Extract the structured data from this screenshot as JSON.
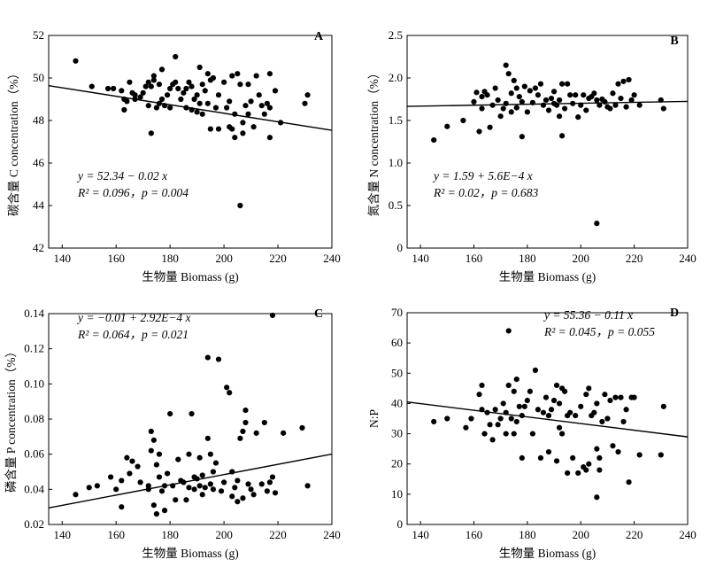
{
  "figure": {
    "background": "#ffffff",
    "ink": "#000000"
  },
  "chart_data": [
    {
      "type": "scatter",
      "panel_label": "A",
      "xlabel": "生物量 Biomass (g)",
      "ylabel": "碳含量 C concentration（%）",
      "xlim": [
        135,
        240
      ],
      "ylim": [
        42,
        52
      ],
      "xticks": [
        140,
        160,
        180,
        200,
        220,
        240
      ],
      "yticks": [
        42,
        44,
        46,
        48,
        50,
        52
      ],
      "equation_lines": [
        "y = 52.34 − 0.02 x",
        "R² = 0.096，p = 0.004"
      ],
      "fit": {
        "intercept": 52.34,
        "slope": -0.02
      },
      "points": [
        [
          145,
          50.8
        ],
        [
          151,
          49.6
        ],
        [
          157,
          49.5
        ],
        [
          159,
          49.5
        ],
        [
          162,
          49.4
        ],
        [
          163,
          48.5
        ],
        [
          163,
          49.0
        ],
        [
          164,
          48.9
        ],
        [
          165,
          49.8
        ],
        [
          166,
          49.3
        ],
        [
          167,
          49.2
        ],
        [
          167,
          49.0
        ],
        [
          169,
          49.1
        ],
        [
          170,
          49.3
        ],
        [
          171,
          49.6
        ],
        [
          172,
          49.8
        ],
        [
          172,
          48.7
        ],
        [
          173,
          47.4
        ],
        [
          173,
          49.6
        ],
        [
          174,
          50.1
        ],
        [
          174,
          49.9
        ],
        [
          175,
          48.6
        ],
        [
          176,
          48.8
        ],
        [
          176,
          49.7
        ],
        [
          177,
          50.4
        ],
        [
          177,
          49.0
        ],
        [
          178,
          48.7
        ],
        [
          179,
          49.2
        ],
        [
          180,
          49.5
        ],
        [
          180,
          48.6
        ],
        [
          181,
          49.7
        ],
        [
          182,
          51.0
        ],
        [
          182,
          49.8
        ],
        [
          183,
          49.5
        ],
        [
          184,
          49.0
        ],
        [
          185,
          49.3
        ],
        [
          186,
          48.6
        ],
        [
          186,
          49.5
        ],
        [
          187,
          49.8
        ],
        [
          188,
          49.6
        ],
        [
          188,
          48.5
        ],
        [
          189,
          49.0
        ],
        [
          190,
          48.4
        ],
        [
          190,
          49.2
        ],
        [
          191,
          50.5
        ],
        [
          191,
          48.8
        ],
        [
          192,
          48.3
        ],
        [
          192,
          49.7
        ],
        [
          193,
          49.4
        ],
        [
          194,
          50.2
        ],
        [
          194,
          48.8
        ],
        [
          195,
          49.9
        ],
        [
          195,
          47.6
        ],
        [
          196,
          50.0
        ],
        [
          197,
          48.6
        ],
        [
          198,
          49.2
        ],
        [
          198,
          47.6
        ],
        [
          200,
          49.8
        ],
        [
          201,
          48.6
        ],
        [
          202,
          48.9
        ],
        [
          202,
          47.7
        ],
        [
          203,
          50.1
        ],
        [
          203,
          47.6
        ],
        [
          204,
          48.3
        ],
        [
          204,
          47.2
        ],
        [
          205,
          50.2
        ],
        [
          206,
          49.7
        ],
        [
          206,
          44.0
        ],
        [
          207,
          47.9
        ],
        [
          207,
          47.4
        ],
        [
          208,
          48.7
        ],
        [
          209,
          49.7
        ],
        [
          209,
          48.3
        ],
        [
          210,
          48.9
        ],
        [
          211,
          47.7
        ],
        [
          212,
          50.1
        ],
        [
          213,
          49.2
        ],
        [
          214,
          48.7
        ],
        [
          215,
          48.3
        ],
        [
          216,
          48.8
        ],
        [
          217,
          50.2
        ],
        [
          217,
          48.6
        ],
        [
          217,
          47.2
        ],
        [
          219,
          49.4
        ],
        [
          221,
          47.9
        ],
        [
          230,
          48.8
        ],
        [
          231,
          49.2
        ]
      ]
    },
    {
      "type": "scatter",
      "panel_label": "B",
      "xlabel": "生物量 Biomass (g)",
      "ylabel": "氮含量 N concentration（%）",
      "xlim": [
        135,
        240
      ],
      "ylim": [
        0,
        2.5
      ],
      "xticks": [
        140,
        160,
        180,
        200,
        220,
        240
      ],
      "yticks": [
        0,
        0.5,
        1.0,
        1.5,
        2.0,
        2.5
      ],
      "ytick_labels": [
        "0",
        "0.5",
        "1.0",
        "1.5",
        "2.0",
        "2.5"
      ],
      "equation_lines": [
        "y = 1.59 + 5.6E−4 x",
        "R² = 0.02，p = 0.683"
      ],
      "fit": {
        "intercept": 1.59,
        "slope": 0.00056
      },
      "points": [
        [
          145,
          1.27
        ],
        [
          150,
          1.43
        ],
        [
          156,
          1.5
        ],
        [
          160,
          1.72
        ],
        [
          161,
          1.83
        ],
        [
          162,
          1.37
        ],
        [
          163,
          1.78
        ],
        [
          163,
          1.64
        ],
        [
          164,
          1.84
        ],
        [
          165,
          1.8
        ],
        [
          166,
          1.42
        ],
        [
          167,
          1.68
        ],
        [
          168,
          1.88
        ],
        [
          169,
          1.74
        ],
        [
          170,
          1.55
        ],
        [
          171,
          1.64
        ],
        [
          172,
          2.15
        ],
        [
          172,
          1.7
        ],
        [
          173,
          2.05
        ],
        [
          174,
          1.82
        ],
        [
          174,
          1.6
        ],
        [
          175,
          1.97
        ],
        [
          176,
          1.88
        ],
        [
          176,
          1.65
        ],
        [
          177,
          1.78
        ],
        [
          178,
          1.31
        ],
        [
          178,
          1.72
        ],
        [
          179,
          1.9
        ],
        [
          180,
          1.6
        ],
        [
          181,
          1.85
        ],
        [
          182,
          1.71
        ],
        [
          183,
          1.88
        ],
        [
          184,
          1.8
        ],
        [
          185,
          1.93
        ],
        [
          186,
          1.68
        ],
        [
          187,
          1.74
        ],
        [
          188,
          1.62
        ],
        [
          189,
          1.76
        ],
        [
          190,
          1.7
        ],
        [
          190,
          1.84
        ],
        [
          191,
          1.68
        ],
        [
          192,
          1.55
        ],
        [
          192,
          1.74
        ],
        [
          193,
          1.32
        ],
        [
          193,
          1.93
        ],
        [
          194,
          1.64
        ],
        [
          195,
          1.93
        ],
        [
          196,
          1.8
        ],
        [
          197,
          1.7
        ],
        [
          198,
          1.8
        ],
        [
          199,
          1.54
        ],
        [
          200,
          1.68
        ],
        [
          201,
          1.8
        ],
        [
          202,
          1.62
        ],
        [
          203,
          1.76
        ],
        [
          204,
          1.78
        ],
        [
          205,
          1.82
        ],
        [
          206,
          1.74
        ],
        [
          206,
          0.29
        ],
        [
          207,
          1.68
        ],
        [
          208,
          1.75
        ],
        [
          209,
          1.72
        ],
        [
          210,
          1.66
        ],
        [
          211,
          1.64
        ],
        [
          212,
          1.82
        ],
        [
          213,
          1.68
        ],
        [
          214,
          1.93
        ],
        [
          215,
          1.76
        ],
        [
          216,
          1.96
        ],
        [
          217,
          1.66
        ],
        [
          218,
          1.98
        ],
        [
          219,
          1.74
        ],
        [
          220,
          1.8
        ],
        [
          222,
          1.68
        ],
        [
          230,
          1.74
        ],
        [
          231,
          1.64
        ]
      ]
    },
    {
      "type": "scatter",
      "panel_label": "C",
      "xlabel": "生物量 Biomass (g)",
      "ylabel": "磷含量 P concentration（%）",
      "xlim": [
        135,
        240
      ],
      "ylim": [
        0.02,
        0.14
      ],
      "xticks": [
        140,
        160,
        180,
        200,
        220,
        240
      ],
      "yticks": [
        0.02,
        0.04,
        0.06,
        0.08,
        0.1,
        0.12,
        0.14
      ],
      "ytick_labels": [
        "0.02",
        "0.04",
        "0.06",
        "0.08",
        "0.10",
        "0.12",
        "0.14"
      ],
      "equation_lines": [
        "y = −0.01 + 2.92E−4 x",
        "R² = 0.064，p = 0.021"
      ],
      "fit": {
        "intercept": -0.01,
        "slope": 0.000292
      },
      "points": [
        [
          145,
          0.037
        ],
        [
          150,
          0.041
        ],
        [
          153,
          0.042
        ],
        [
          158,
          0.047
        ],
        [
          160,
          0.04
        ],
        [
          162,
          0.045
        ],
        [
          162,
          0.03
        ],
        [
          164,
          0.058
        ],
        [
          165,
          0.049
        ],
        [
          166,
          0.056
        ],
        [
          168,
          0.053
        ],
        [
          169,
          0.044
        ],
        [
          172,
          0.042
        ],
        [
          172,
          0.04
        ],
        [
          173,
          0.062
        ],
        [
          173,
          0.073
        ],
        [
          174,
          0.068
        ],
        [
          174,
          0.031
        ],
        [
          175,
          0.054
        ],
        [
          175,
          0.026
        ],
        [
          176,
          0.047
        ],
        [
          176,
          0.06
        ],
        [
          177,
          0.039
        ],
        [
          178,
          0.028
        ],
        [
          178,
          0.042
        ],
        [
          179,
          0.049
        ],
        [
          180,
          0.083
        ],
        [
          181,
          0.042
        ],
        [
          182,
          0.034
        ],
        [
          183,
          0.057
        ],
        [
          184,
          0.045
        ],
        [
          185,
          0.044
        ],
        [
          186,
          0.034
        ],
        [
          187,
          0.041
        ],
        [
          187,
          0.06
        ],
        [
          188,
          0.083
        ],
        [
          189,
          0.047
        ],
        [
          189,
          0.04
        ],
        [
          190,
          0.046
        ],
        [
          191,
          0.058
        ],
        [
          191,
          0.042
        ],
        [
          192,
          0.048
        ],
        [
          192,
          0.037
        ],
        [
          193,
          0.041
        ],
        [
          194,
          0.069
        ],
        [
          194,
          0.115
        ],
        [
          195,
          0.043
        ],
        [
          195,
          0.06
        ],
        [
          196,
          0.05
        ],
        [
          196,
          0.04
        ],
        [
          197,
          0.055
        ],
        [
          198,
          0.114
        ],
        [
          199,
          0.039
        ],
        [
          200,
          0.044
        ],
        [
          201,
          0.098
        ],
        [
          202,
          0.095
        ],
        [
          203,
          0.036
        ],
        [
          203,
          0.05
        ],
        [
          204,
          0.041
        ],
        [
          205,
          0.045
        ],
        [
          205,
          0.033
        ],
        [
          206,
          0.069
        ],
        [
          207,
          0.073
        ],
        [
          207,
          0.035
        ],
        [
          208,
          0.085
        ],
        [
          208,
          0.078
        ],
        [
          209,
          0.043
        ],
        [
          210,
          0.04
        ],
        [
          211,
          0.037
        ],
        [
          212,
          0.072
        ],
        [
          214,
          0.043
        ],
        [
          215,
          0.078
        ],
        [
          216,
          0.039
        ],
        [
          217,
          0.044
        ],
        [
          218,
          0.139
        ],
        [
          218,
          0.047
        ],
        [
          219,
          0.038
        ],
        [
          222,
          0.072
        ],
        [
          229,
          0.075
        ],
        [
          231,
          0.042
        ]
      ]
    },
    {
      "type": "scatter",
      "panel_label": "D",
      "xlabel": "生物量 Biomass (g)",
      "ylabel": "N:P",
      "xlim": [
        135,
        240
      ],
      "ylim": [
        0,
        70
      ],
      "xticks": [
        140,
        160,
        180,
        200,
        220,
        240
      ],
      "yticks": [
        0,
        10,
        20,
        30,
        40,
        50,
        60,
        70
      ],
      "equation_lines": [
        "y = 55.36 − 0.11 x",
        "R² = 0.045，p = 0.055"
      ],
      "fit": {
        "intercept": 55.36,
        "slope": -0.11
      },
      "points": [
        [
          145,
          34
        ],
        [
          150,
          35
        ],
        [
          157,
          32
        ],
        [
          159,
          35
        ],
        [
          162,
          43
        ],
        [
          163,
          38
        ],
        [
          163,
          46
        ],
        [
          164,
          30
        ],
        [
          165,
          37
        ],
        [
          166,
          33
        ],
        [
          167,
          28
        ],
        [
          168,
          38
        ],
        [
          169,
          33
        ],
        [
          170,
          35
        ],
        [
          171,
          40
        ],
        [
          172,
          30
        ],
        [
          172,
          37
        ],
        [
          173,
          46
        ],
        [
          173,
          64
        ],
        [
          174,
          35
        ],
        [
          175,
          30
        ],
        [
          175,
          44
        ],
        [
          176,
          48
        ],
        [
          176,
          34
        ],
        [
          177,
          39
        ],
        [
          178,
          36
        ],
        [
          178,
          22
        ],
        [
          179,
          39
        ],
        [
          180,
          41
        ],
        [
          181,
          44
        ],
        [
          182,
          30
        ],
        [
          183,
          51
        ],
        [
          184,
          38
        ],
        [
          185,
          22
        ],
        [
          186,
          37
        ],
        [
          187,
          42
        ],
        [
          188,
          36
        ],
        [
          188,
          24
        ],
        [
          189,
          38
        ],
        [
          190,
          41
        ],
        [
          191,
          21
        ],
        [
          191,
          46
        ],
        [
          192,
          40
        ],
        [
          192,
          32
        ],
        [
          193,
          45
        ],
        [
          193,
          30
        ],
        [
          194,
          44
        ],
        [
          195,
          36
        ],
        [
          195,
          17
        ],
        [
          196,
          37
        ],
        [
          197,
          22
        ],
        [
          198,
          36
        ],
        [
          199,
          17
        ],
        [
          200,
          39
        ],
        [
          201,
          19
        ],
        [
          202,
          43
        ],
        [
          202,
          18
        ],
        [
          203,
          45
        ],
        [
          203,
          20
        ],
        [
          204,
          36
        ],
        [
          205,
          37
        ],
        [
          206,
          40
        ],
        [
          206,
          25
        ],
        [
          206,
          9
        ],
        [
          207,
          22
        ],
        [
          207,
          18
        ],
        [
          208,
          34
        ],
        [
          209,
          43
        ],
        [
          210,
          35
        ],
        [
          211,
          41
        ],
        [
          212,
          26
        ],
        [
          213,
          42
        ],
        [
          214,
          24
        ],
        [
          215,
          42
        ],
        [
          216,
          34
        ],
        [
          217,
          38
        ],
        [
          218,
          14
        ],
        [
          219,
          42
        ],
        [
          220,
          42
        ],
        [
          222,
          23
        ],
        [
          230,
          23
        ],
        [
          231,
          39
        ]
      ]
    }
  ]
}
